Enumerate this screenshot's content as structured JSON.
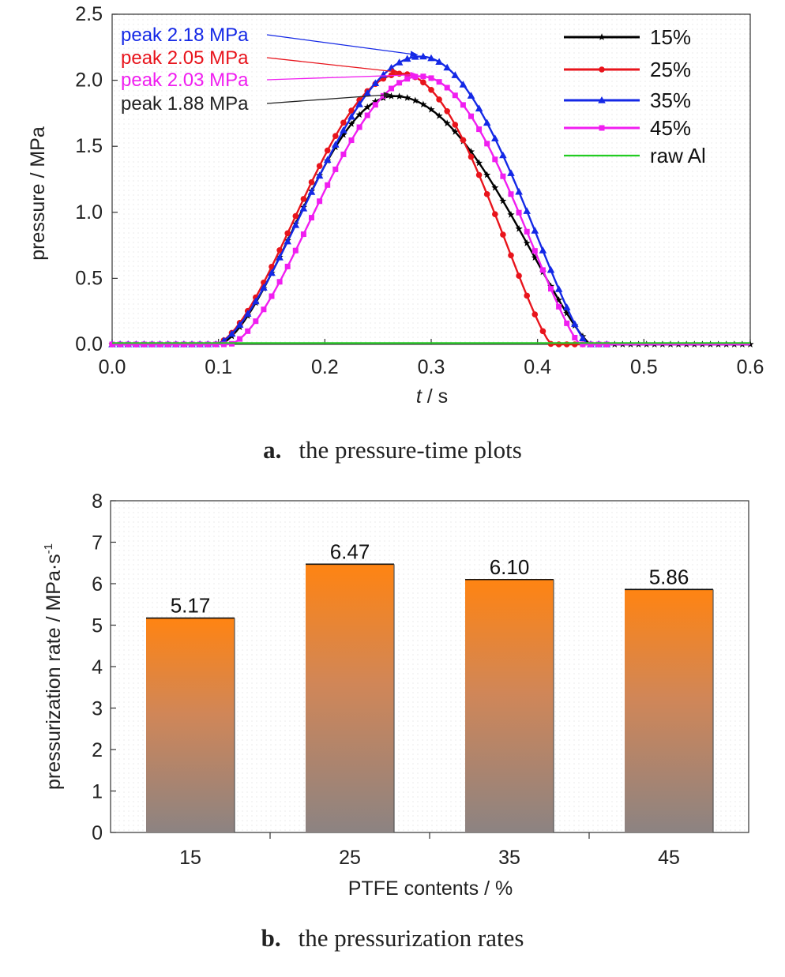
{
  "chart_data": [
    {
      "type": "line",
      "caption": {
        "tag": "a.",
        "text": "the pressure-time plots"
      },
      "xlabel_italic": "t",
      "xlabel_unit": " / s",
      "ylabel": "pressure / MPa",
      "xlim": [
        0.0,
        0.6
      ],
      "ylim": [
        0.0,
        2.5
      ],
      "xticks": [
        "0.0",
        "0.1",
        "0.2",
        "0.3",
        "0.4",
        "0.5",
        "0.6"
      ],
      "yticks": [
        "0.0",
        "0.5",
        "1.0",
        "1.5",
        "2.0",
        "2.5"
      ],
      "legend_position": "top-right",
      "series": [
        {
          "name": "15%",
          "color": "#000000",
          "marker": "star",
          "start": 0.1,
          "peak_t": 0.265,
          "peak": 1.88,
          "end": 0.45
        },
        {
          "name": "25%",
          "color": "#e8141c",
          "marker": "circle",
          "start": 0.097,
          "peak_t": 0.272,
          "peak": 2.05,
          "end": 0.413
        },
        {
          "name": "35%",
          "color": "#1428e6",
          "marker": "triangle",
          "start": 0.097,
          "peak_t": 0.29,
          "peak": 2.18,
          "end": 0.447
        },
        {
          "name": "45%",
          "color": "#f01ef0",
          "marker": "square",
          "start": 0.11,
          "peak_t": 0.29,
          "peak": 2.03,
          "end": 0.44
        },
        {
          "name": "raw Al",
          "color": "#22cc22",
          "marker": "none",
          "start": 0.0,
          "peak_t": 0.0,
          "peak": 0.01,
          "end": 0.6
        }
      ],
      "annotations": [
        {
          "text": "peak 2.18 MPa",
          "color": "#1428e6",
          "target_t": 0.29,
          "target_p": 2.18
        },
        {
          "text": "peak 2.05 MPa",
          "color": "#e8141c",
          "target_t": 0.272,
          "target_p": 2.05
        },
        {
          "text": "peak 2.03 MPa",
          "color": "#f01ef0",
          "target_t": 0.29,
          "target_p": 2.03
        },
        {
          "text": "peak 1.88 MPa",
          "color": "#222222",
          "target_t": 0.265,
          "target_p": 1.88
        }
      ]
    },
    {
      "type": "bar",
      "caption": {
        "tag": "b.",
        "text": "the pressurization rates"
      },
      "xlabel": "PTFE contents / %",
      "ylabel": "pressurization rate / MPa·s",
      "ylabel_sup": "-1",
      "categories": [
        "15",
        "25",
        "35",
        "45"
      ],
      "values": [
        5.17,
        6.47,
        6.1,
        5.86
      ],
      "value_labels": [
        "5.17",
        "6.47",
        "6.10",
        "5.86"
      ],
      "ylim": [
        0,
        8
      ],
      "yticks": [
        "0",
        "1",
        "2",
        "3",
        "4",
        "5",
        "6",
        "7",
        "8"
      ],
      "bar_gradient": [
        "#ff8412",
        "#d08658",
        "#8c8382"
      ]
    }
  ]
}
